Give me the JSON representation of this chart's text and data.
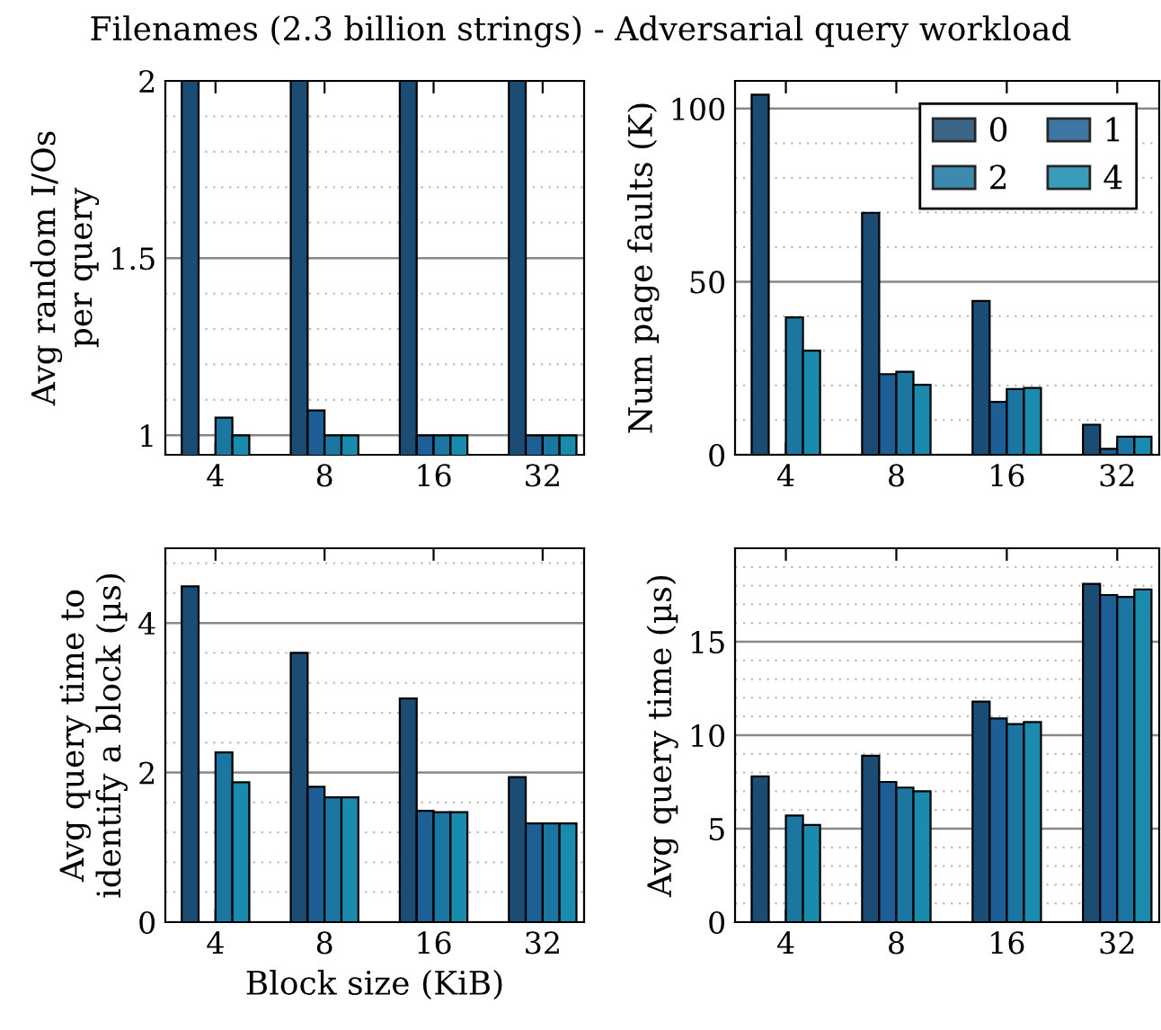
{
  "chart_data": [
    {
      "type": "bar",
      "title": "Filenames (2.3 billion strings) - Adversarial query workload",
      "ylabel": "Avg random I/Os\nper query",
      "categories": [
        "4",
        "8",
        "16",
        "32"
      ],
      "series": [
        {
          "color": "#1b4c74",
          "values": [
            2,
            2,
            2,
            2
          ]
        },
        {
          "color": "#1d5f94",
          "values": [
            null,
            1.07,
            1,
            1
          ]
        },
        {
          "color": "#1b77a2",
          "values": [
            1.05,
            1,
            1,
            1
          ]
        },
        {
          "color": "#1a8bad",
          "values": [
            1,
            1,
            1,
            1
          ]
        }
      ],
      "ylim": [
        0.945,
        2
      ],
      "yticks": [
        1,
        1.5,
        2
      ],
      "grid": true
    },
    {
      "type": "bar",
      "ylabel": "Num page faults (K)",
      "categories": [
        "4",
        "8",
        "16",
        "32"
      ],
      "series": [
        {
          "name": "0",
          "color": "#1b4c74",
          "values": [
            104,
            69.9,
            44.4,
            8.7
          ]
        },
        {
          "name": "1",
          "color": "#1d5f94",
          "values": [
            null,
            23.3,
            15.3,
            1.7
          ]
        },
        {
          "name": "2",
          "color": "#1b77a2",
          "values": [
            39.7,
            24,
            19,
            5.2
          ]
        },
        {
          "name": "4",
          "color": "#1a8bad",
          "values": [
            30.1,
            20.2,
            19.3,
            5.2
          ]
        }
      ],
      "ylim": [
        0,
        108
      ],
      "yticks": [
        0,
        50,
        100
      ],
      "grid": true,
      "legend": "top right"
    },
    {
      "type": "bar",
      "ylabel": "Avg query time to\nidentify a block (µs)",
      "xlabel": "Block size (KiB)",
      "categories": [
        "4",
        "8",
        "16",
        "32"
      ],
      "series": [
        {
          "color": "#1b4c74",
          "values": [
            4.49,
            3.6,
            2.99,
            1.94
          ]
        },
        {
          "color": "#1d5f94",
          "values": [
            null,
            1.81,
            1.49,
            1.32
          ]
        },
        {
          "color": "#1b77a2",
          "values": [
            2.27,
            1.67,
            1.47,
            1.32
          ]
        },
        {
          "color": "#1a8bad",
          "values": [
            1.87,
            1.67,
            1.47,
            1.32
          ]
        }
      ],
      "ylim": [
        0,
        5
      ],
      "yticks": [
        0,
        2,
        4
      ],
      "grid": true
    },
    {
      "type": "bar",
      "ylabel": "Avg query time (µs)",
      "categories": [
        "4",
        "8",
        "16",
        "32"
      ],
      "series": [
        {
          "color": "#1b4c74",
          "values": [
            7.8,
            8.9,
            11.8,
            18.1
          ]
        },
        {
          "color": "#1d5f94",
          "values": [
            null,
            7.5,
            10.9,
            17.5
          ]
        },
        {
          "color": "#1b77a2",
          "values": [
            5.7,
            7.2,
            10.6,
            17.4
          ]
        },
        {
          "color": "#1a8bad",
          "values": [
            5.2,
            7,
            10.7,
            17.8
          ]
        }
      ],
      "ylim": [
        0,
        20
      ],
      "yticks": [
        0,
        5,
        10,
        15
      ],
      "grid": true
    }
  ]
}
